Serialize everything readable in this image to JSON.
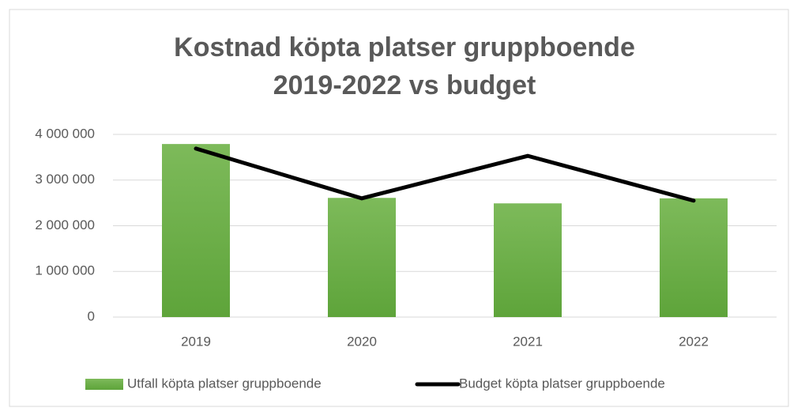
{
  "chart_data": {
    "type": "bar",
    "title": [
      "Kostnad köpta platser gruppboende",
      "2019-2022 vs budget"
    ],
    "categories": [
      "2019",
      "2020",
      "2021",
      "2022"
    ],
    "series": [
      {
        "name": "Utfall köpta platser gruppboende",
        "type": "bar",
        "color": "#70ad47",
        "values": [
          3790000,
          2610000,
          2490000,
          2600000
        ]
      },
      {
        "name": "Budget köpta platser gruppboende",
        "type": "line",
        "color": "#000000",
        "values": [
          3690000,
          2600000,
          3530000,
          2550000
        ]
      }
    ],
    "ylim": [
      0,
      4000000
    ],
    "yticks": [
      0,
      {
        "value": 1000000,
        "label": "1 000 000"
      },
      {
        "value": 2000000,
        "label": "2 000 000"
      },
      {
        "value": 3000000,
        "label": "3 000 000"
      },
      {
        "value": 4000000,
        "label": "4 000 000"
      }
    ],
    "grid": true,
    "legend": "bottom"
  }
}
